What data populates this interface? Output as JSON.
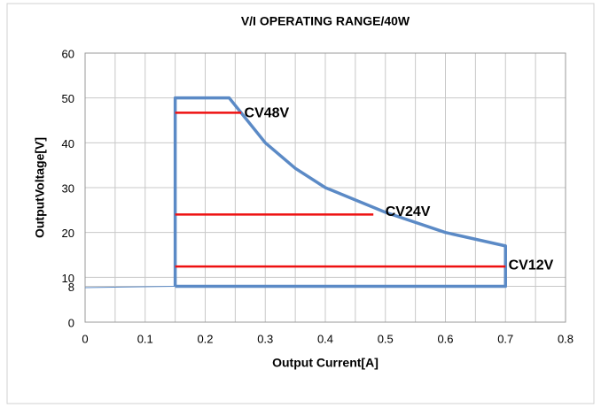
{
  "chart_data": {
    "type": "line",
    "title": "V/I  OPERATING RANGE/40W",
    "x_label": "Output Current[A]",
    "y_label": "OutputVoltage[V]",
    "xlim": [
      0,
      0.8
    ],
    "ylim": [
      0,
      60
    ],
    "xticks": [
      0,
      0.1,
      0.2,
      0.3,
      0.4,
      0.5,
      0.6,
      0.7,
      0.8
    ],
    "x_minor_grid": [
      0.05,
      0.15,
      0.25,
      0.35,
      0.45,
      0.55,
      0.65,
      0.75
    ],
    "yticks": [
      0,
      8,
      10,
      20,
      30,
      40,
      50,
      60
    ],
    "grid": true,
    "series": [
      {
        "color": "#5b8ac6",
        "width": 3.5,
        "x": [
          0.15,
          0.15,
          0.24,
          0.3,
          0.35,
          0.4,
          0.5,
          0.6,
          0.7,
          0.7,
          0.15
        ],
        "values": [
          8,
          50,
          50,
          40,
          34.3,
          30,
          24.5,
          20,
          17,
          8,
          8
        ]
      },
      {
        "color": "#5b8ac6",
        "width": 1,
        "x": [
          0,
          0.15
        ],
        "values": [
          7.7,
          8
        ]
      },
      {
        "color": "#ee1111",
        "width": 2.5,
        "x": [
          0.15,
          0.26
        ],
        "values": [
          46.7,
          46.7
        ]
      },
      {
        "color": "#ee1111",
        "width": 2.5,
        "x": [
          0.15,
          0.48
        ],
        "values": [
          24,
          24
        ]
      },
      {
        "color": "#ee1111",
        "width": 2.5,
        "x": [
          0.15,
          0.7
        ],
        "values": [
          12.4,
          12.4
        ]
      }
    ],
    "annotations": [
      {
        "text": "CV48V",
        "x": 0.265,
        "y": 46.5
      },
      {
        "text": "CV24V",
        "x": 0.5,
        "y": 24.5
      },
      {
        "text": "CV12V",
        "x": 0.705,
        "y": 12.6
      }
    ]
  }
}
